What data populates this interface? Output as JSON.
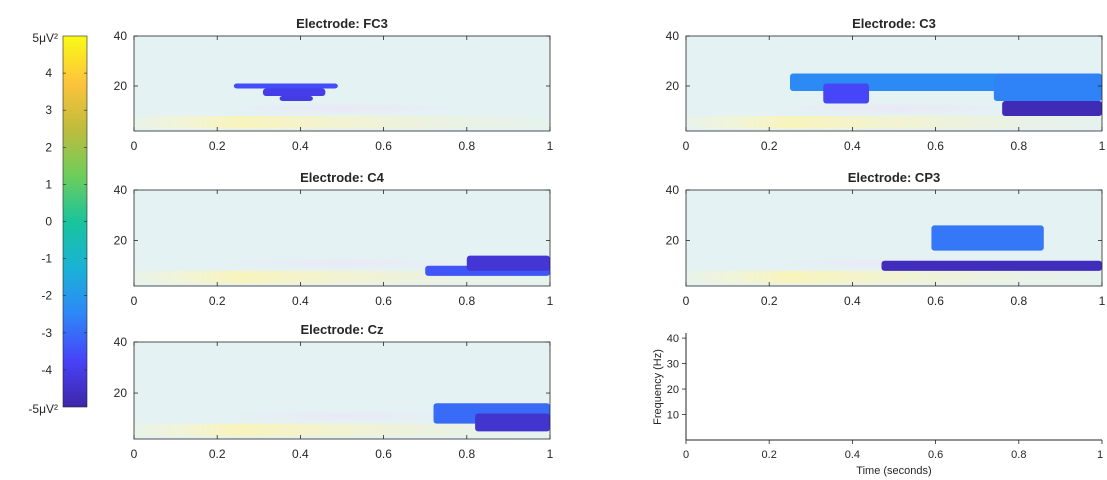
{
  "figure": {
    "colorbar": {
      "top_label": "5μV²",
      "bottom_label": "-5μV²",
      "ticks": [
        "4",
        "3",
        "2",
        "1",
        "0",
        "-1",
        "-2",
        "-3",
        "-4"
      ],
      "range": [
        -5,
        5
      ],
      "colormap": "parula",
      "colors": [
        "#3e26a8",
        "#4743f8",
        "#2e87f7",
        "#1ab2d6",
        "#19c49b",
        "#6fcd5b",
        "#c0bc3d",
        "#fec43b",
        "#f9fb15"
      ]
    },
    "empty_axes": {
      "ylabel": "Frequency (Hz)",
      "xlabel": "Time (seconds)",
      "yticks": [
        "10",
        "20",
        "30",
        "40"
      ],
      "xticks": [
        "0",
        "0.2",
        "0.4",
        "0.6",
        "0.8",
        "1"
      ]
    }
  },
  "chart_data": [
    {
      "type": "heatmap",
      "title": "Electrode: FC3",
      "xlim": [
        0,
        1
      ],
      "ylim": [
        2,
        40
      ],
      "xticks": [
        "0",
        "0.2",
        "0.4",
        "0.6",
        "0.8",
        "1"
      ],
      "yticks": [
        "20",
        "40"
      ],
      "clim": [
        -5,
        5
      ],
      "grid": false,
      "background_value": 0,
      "significant_clusters": [
        {
          "time": [
            0.24,
            0.49
          ],
          "freq": [
            19,
            21
          ],
          "value": -3.6
        },
        {
          "time": [
            0.31,
            0.46
          ],
          "freq": [
            16,
            19
          ],
          "value": -4.0
        },
        {
          "time": [
            0.35,
            0.43
          ],
          "freq": [
            14,
            16
          ],
          "value": -4.1
        }
      ]
    },
    {
      "type": "heatmap",
      "title": "Electrode: C3",
      "xlim": [
        0,
        1
      ],
      "ylim": [
        2,
        40
      ],
      "xticks": [
        "0",
        "0.2",
        "0.4",
        "0.6",
        "0.8",
        "1"
      ],
      "yticks": [
        "20",
        "40"
      ],
      "clim": [
        -5,
        5
      ],
      "grid": false,
      "background_value": 0,
      "significant_clusters": [
        {
          "time": [
            0.25,
            0.75
          ],
          "freq": [
            18,
            25
          ],
          "value": -2.4
        },
        {
          "time": [
            0.33,
            0.44
          ],
          "freq": [
            13,
            21
          ],
          "value": -3.7
        },
        {
          "time": [
            0.74,
            1.0
          ],
          "freq": [
            14,
            25
          ],
          "value": -2.6
        },
        {
          "time": [
            0.76,
            1.0
          ],
          "freq": [
            8,
            14
          ],
          "value": -4.8
        }
      ]
    },
    {
      "type": "heatmap",
      "title": "Electrode: C4",
      "xlim": [
        0,
        1
      ],
      "ylim": [
        2,
        40
      ],
      "xticks": [
        "0",
        "0.2",
        "0.4",
        "0.6",
        "0.8",
        "1"
      ],
      "yticks": [
        "20",
        "40"
      ],
      "clim": [
        -5,
        5
      ],
      "grid": false,
      "background_value": 0,
      "significant_clusters": [
        {
          "time": [
            0.7,
            1.0
          ],
          "freq": [
            6,
            10
          ],
          "value": -3.4
        },
        {
          "time": [
            0.8,
            1.0
          ],
          "freq": [
            8,
            14
          ],
          "value": -4.3
        }
      ]
    },
    {
      "type": "heatmap",
      "title": "Electrode: CP3",
      "xlim": [
        0,
        1
      ],
      "ylim": [
        2,
        40
      ],
      "xticks": [
        "0",
        "0.2",
        "0.4",
        "0.6",
        "0.8",
        "1"
      ],
      "yticks": [
        "20",
        "40"
      ],
      "clim": [
        -5,
        5
      ],
      "grid": false,
      "background_value": 0,
      "significant_clusters": [
        {
          "time": [
            0.59,
            0.86
          ],
          "freq": [
            16,
            26
          ],
          "value": -2.8
        },
        {
          "time": [
            0.47,
            1.0
          ],
          "freq": [
            8,
            12
          ],
          "value": -4.7
        }
      ]
    },
    {
      "type": "heatmap",
      "title": "Electrode: Cz",
      "xlim": [
        0,
        1
      ],
      "ylim": [
        2,
        40
      ],
      "xticks": [
        "0",
        "0.2",
        "0.4",
        "0.6",
        "0.8",
        "1"
      ],
      "yticks": [
        "20",
        "40"
      ],
      "clim": [
        -5,
        5
      ],
      "grid": false,
      "background_value": 0,
      "significant_clusters": [
        {
          "time": [
            0.72,
            1.0
          ],
          "freq": [
            8,
            16
          ],
          "value": -3.0
        },
        {
          "time": [
            0.82,
            1.0
          ],
          "freq": [
            5,
            12
          ],
          "value": -4.4
        }
      ]
    }
  ]
}
